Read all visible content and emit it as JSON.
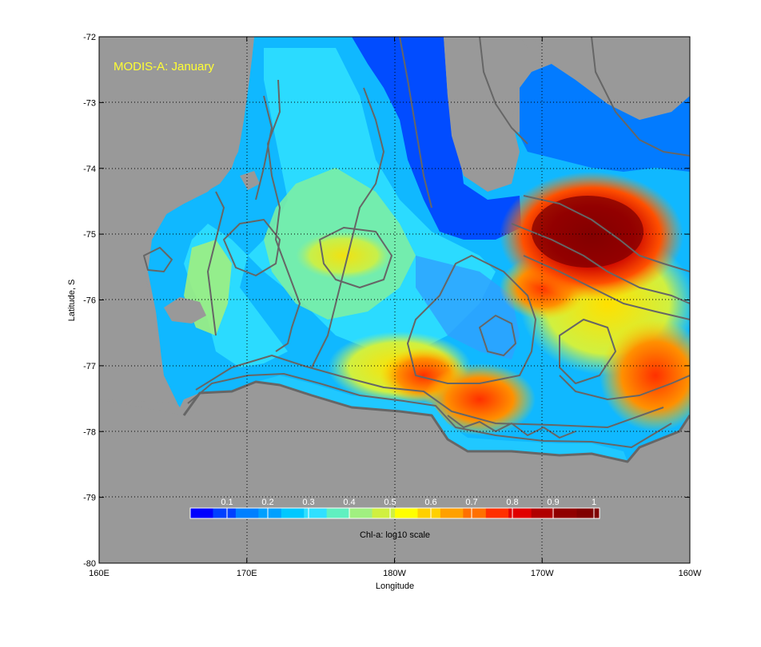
{
  "map": {
    "title": "MODIS-A: January",
    "title_color": "#ffff33",
    "xlabel": "Longitude",
    "ylabel": "Latitude, S",
    "x_ticks": [
      "160E",
      "170E",
      "180W",
      "170W",
      "160W"
    ],
    "y_ticks": [
      "-72",
      "-73",
      "-74",
      "-75",
      "-76",
      "-77",
      "-78",
      "-79",
      "-80"
    ],
    "land_color": "#999999",
    "contour_color": "#666666",
    "grid": true,
    "colorbar": {
      "label": "Chl-a: log10 scale",
      "tick_labels": [
        "0.1",
        "0.2",
        "0.3",
        "0.4",
        "0.5",
        "0.6",
        "0.7",
        "0.8",
        "0.9",
        "1"
      ],
      "colors": [
        "#0000ff",
        "#0040ff",
        "#0080ff",
        "#00a0ff",
        "#00c8ff",
        "#30e0ff",
        "#60f0c0",
        "#a0f080",
        "#d0f040",
        "#ffff00",
        "#ffd000",
        "#ffa000",
        "#ff7000",
        "#ff3000",
        "#e00000",
        "#b00000",
        "#900000",
        "#800000"
      ]
    }
  }
}
